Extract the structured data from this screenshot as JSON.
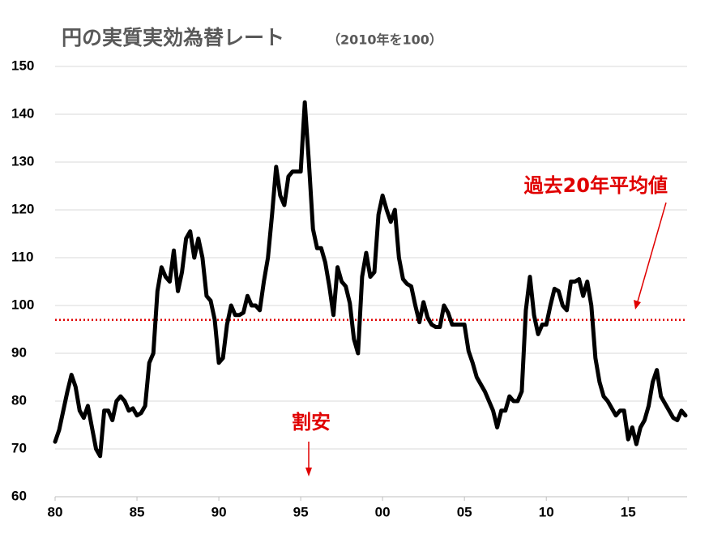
{
  "chart_data": {
    "type": "line",
    "title": "円の実質実効為替レート",
    "subtitle": "（2010年を100）",
    "x": [
      1980,
      1980.25,
      1980.5,
      1980.75,
      1981,
      1981.25,
      1981.5,
      1981.75,
      1982,
      1982.25,
      1982.5,
      1982.75,
      1983,
      1983.25,
      1983.5,
      1983.75,
      1984,
      1984.25,
      1984.5,
      1984.75,
      1985,
      1985.25,
      1985.5,
      1985.75,
      1986,
      1986.25,
      1986.5,
      1986.75,
      1987,
      1987.25,
      1987.5,
      1987.75,
      1988,
      1988.25,
      1988.5,
      1988.75,
      1989,
      1989.25,
      1989.5,
      1989.75,
      1990,
      1990.25,
      1990.5,
      1990.75,
      1991,
      1991.25,
      1991.5,
      1991.75,
      1992,
      1992.25,
      1992.5,
      1992.75,
      1993,
      1993.25,
      1993.5,
      1993.75,
      1994,
      1994.25,
      1994.5,
      1994.75,
      1995,
      1995.25,
      1995.5,
      1995.75,
      1996,
      1996.25,
      1996.5,
      1996.75,
      1997,
      1997.25,
      1997.5,
      1997.75,
      1998,
      1998.25,
      1998.5,
      1998.75,
      1999,
      1999.25,
      1999.5,
      1999.75,
      2000,
      2000.25,
      2000.5,
      2000.75,
      2001,
      2001.25,
      2001.5,
      2001.75,
      2002,
      2002.25,
      2002.5,
      2002.75,
      2003,
      2003.25,
      2003.5,
      2003.75,
      2004,
      2004.25,
      2004.5,
      2004.75,
      2005,
      2005.25,
      2005.5,
      2005.75,
      2006,
      2006.25,
      2006.5,
      2006.75,
      2007,
      2007.25,
      2007.5,
      2007.75,
      2008,
      2008.25,
      2008.5,
      2008.75,
      2009,
      2009.25,
      2009.5,
      2009.75,
      2010,
      2010.25,
      2010.5,
      2010.75,
      2011,
      2011.25,
      2011.5,
      2011.75,
      2012,
      2012.25,
      2012.5,
      2012.75,
      2013,
      2013.25,
      2013.5,
      2013.75,
      2014,
      2014.25,
      2014.5,
      2014.75,
      2015,
      2015.25,
      2015.5,
      2015.75,
      2016,
      2016.25,
      2016.5,
      2016.75,
      2017,
      2017.25,
      2017.5,
      2017.75,
      2018,
      2018.25,
      2018.5
    ],
    "values": [
      71.5,
      74,
      78,
      82,
      85.5,
      83,
      78,
      76.5,
      79,
      74.5,
      70,
      68.5,
      78,
      78,
      76,
      80,
      81,
      80,
      78,
      78.5,
      77,
      77.5,
      79,
      88,
      90,
      103,
      108,
      106,
      105,
      111.5,
      103,
      107,
      114,
      115.5,
      110,
      114,
      110,
      102,
      101,
      97,
      88,
      89,
      96,
      100,
      98,
      98,
      98.5,
      102,
      100,
      100,
      99,
      105,
      110,
      119,
      129,
      123,
      121,
      127,
      128,
      128,
      128,
      142.5,
      130,
      116,
      112,
      112,
      109,
      104,
      98,
      108,
      105,
      104,
      100.5,
      93,
      90,
      106,
      111,
      106,
      107,
      119,
      123,
      120,
      117.5,
      120,
      110,
      105.5,
      104.5,
      104,
      100,
      96.5,
      100.7,
      97.5,
      96,
      95.5,
      95.5,
      100,
      98.5,
      96,
      96,
      96,
      96,
      90.5,
      88,
      85,
      83.5,
      82,
      80,
      78,
      74.5,
      78,
      78,
      81,
      80,
      80,
      82,
      99,
      106,
      98,
      94,
      96,
      96,
      100,
      103.5,
      103,
      100,
      99,
      105,
      105,
      105.5,
      102,
      105,
      100,
      89,
      84,
      81,
      80,
      78.5,
      77,
      78,
      78,
      72,
      74.5,
      71,
      74.5,
      76,
      79,
      84,
      86.5,
      81,
      79.5,
      78,
      76.5,
      76,
      78,
      77
    ],
    "color": "#000000",
    "xlim": [
      1980,
      2018.6
    ],
    "ylim": [
      60,
      150
    ],
    "xticks": [
      {
        "value": 1980,
        "label": "80"
      },
      {
        "value": 1985,
        "label": "85"
      },
      {
        "value": 1990,
        "label": "90"
      },
      {
        "value": 1995,
        "label": "95"
      },
      {
        "value": 2000,
        "label": "00"
      },
      {
        "value": 2005,
        "label": "05"
      },
      {
        "value": 2010,
        "label": "10"
      },
      {
        "value": 2015,
        "label": "15"
      }
    ],
    "yticks": [
      60,
      70,
      80,
      90,
      100,
      110,
      120,
      130,
      140,
      150
    ],
    "grid": true,
    "reference_line": {
      "value": 97,
      "label": "過去20年平均値",
      "color": "#e00000"
    },
    "annotations": [
      "割安"
    ]
  }
}
